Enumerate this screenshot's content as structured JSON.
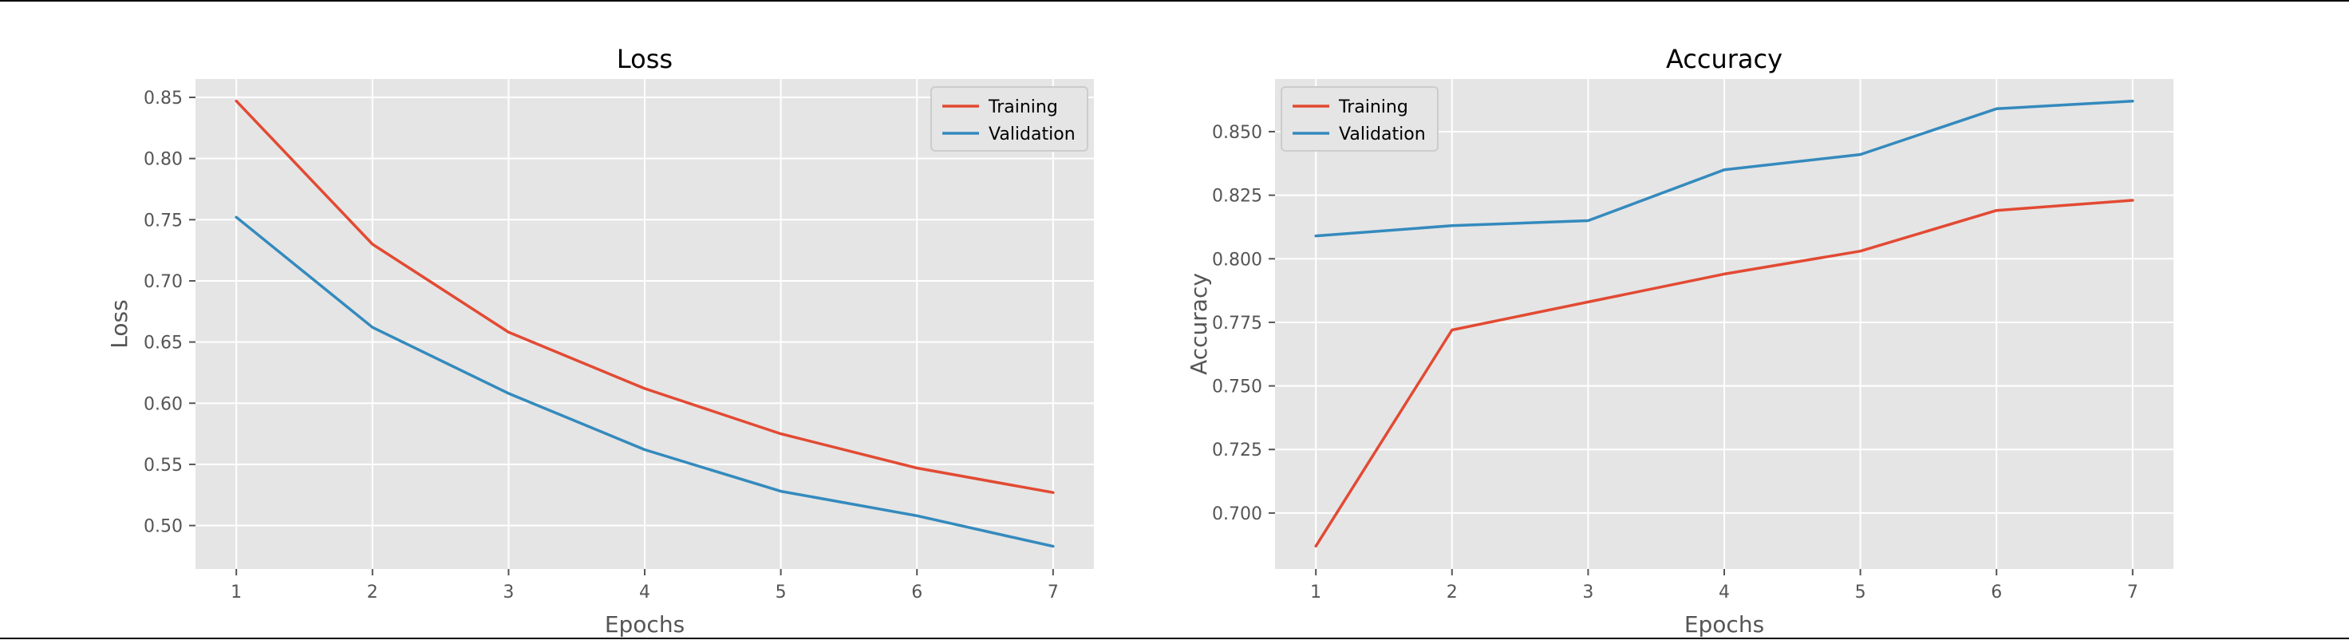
{
  "chart_data": [
    {
      "type": "line",
      "title": "Loss",
      "xlabel": "Epochs",
      "ylabel": "Loss",
      "x": [
        1,
        2,
        3,
        4,
        5,
        6,
        7
      ],
      "xticks": [
        1,
        2,
        3,
        4,
        5,
        6,
        7
      ],
      "xlim": [
        0.7,
        7.3
      ],
      "yticks": [
        0.5,
        0.55,
        0.6,
        0.65,
        0.7,
        0.75,
        0.8,
        0.85
      ],
      "ytick_decimals": 2,
      "ylim": [
        0.4645,
        0.865
      ],
      "grid": true,
      "legend_position": "upper right",
      "series": [
        {
          "name": "Training",
          "color": "#e24a33",
          "values": [
            0.847,
            0.73,
            0.658,
            0.612,
            0.575,
            0.547,
            0.527
          ]
        },
        {
          "name": "Validation",
          "color": "#348abd",
          "values": [
            0.752,
            0.662,
            0.608,
            0.562,
            0.528,
            0.508,
            0.483
          ]
        }
      ]
    },
    {
      "type": "line",
      "title": "Accuracy",
      "xlabel": "Epochs",
      "ylabel": "Accuracy",
      "x": [
        1,
        2,
        3,
        4,
        5,
        6,
        7
      ],
      "xticks": [
        1,
        2,
        3,
        4,
        5,
        6,
        7
      ],
      "xlim": [
        0.7,
        7.3
      ],
      "yticks": [
        0.7,
        0.725,
        0.75,
        0.775,
        0.8,
        0.825,
        0.85
      ],
      "ytick_decimals": 3,
      "ylim": [
        0.678,
        0.8707
      ],
      "grid": true,
      "legend_position": "upper left",
      "series": [
        {
          "name": "Training",
          "color": "#e24a33",
          "values": [
            0.687,
            0.772,
            0.783,
            0.794,
            0.803,
            0.819,
            0.823
          ]
        },
        {
          "name": "Validation",
          "color": "#348abd",
          "values": [
            0.809,
            0.813,
            0.815,
            0.835,
            0.841,
            0.859,
            0.862
          ]
        }
      ]
    }
  ]
}
